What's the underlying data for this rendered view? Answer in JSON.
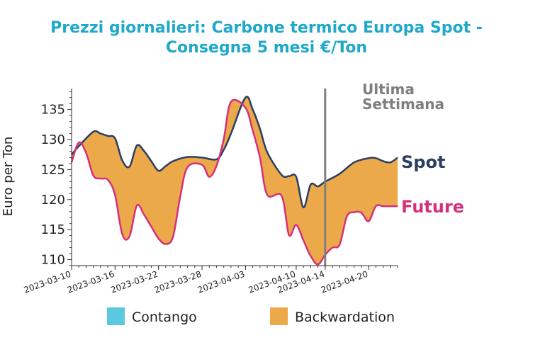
{
  "chart_data": {
    "type": "area",
    "title_line1": "Prezzi giornalieri: Carbone termico Europa Spot -",
    "title_line2": "Consegna 5 mesi €/Ton",
    "ylabel": "Euro per Ton",
    "ylim": [
      109,
      138.5
    ],
    "yticks": [
      110,
      115,
      120,
      125,
      130,
      135
    ],
    "x_range": [
      "2023-03-10",
      "2023-04-24"
    ],
    "xticks": [
      "2023-03-10",
      "2023-03-16",
      "2023-03-22",
      "2023-03-28",
      "2023-04-03",
      "2023-04-10",
      "2023-04-14",
      "2023-04-20"
    ],
    "colors": {
      "title": "#1fa8c9",
      "spot": "#2b3e63",
      "future": "#d62f7b",
      "backwardation": "#eba94a",
      "contango": "#5bc8df",
      "last_week_line": "#7f7f7f",
      "axis": "#333333"
    },
    "series": [
      {
        "name": "Spot",
        "x": [
          "2023-03-10",
          "2023-03-11",
          "2023-03-13",
          "2023-03-14",
          "2023-03-15",
          "2023-03-16",
          "2023-03-17",
          "2023-03-18",
          "2023-03-19",
          "2023-03-20",
          "2023-03-21",
          "2023-03-22",
          "2023-03-23",
          "2023-03-24",
          "2023-03-26",
          "2023-03-28",
          "2023-03-30",
          "2023-03-31",
          "2023-04-01",
          "2023-04-03",
          "2023-04-04",
          "2023-04-05",
          "2023-04-06",
          "2023-04-08",
          "2023-04-09",
          "2023-04-10",
          "2023-04-11",
          "2023-04-12",
          "2023-04-13",
          "2023-04-14",
          "2023-04-16",
          "2023-04-18",
          "2023-04-20",
          "2023-04-21",
          "2023-04-22",
          "2023-04-23",
          "2023-04-24"
        ],
        "values": [
          127.5,
          128.9,
          131.3,
          131.0,
          130.6,
          130.2,
          126.5,
          125.5,
          129.0,
          128.1,
          126.4,
          124.8,
          125.6,
          126.4,
          127.1,
          127.0,
          126.7,
          128.3,
          131.0,
          137.0,
          135.0,
          131.8,
          127.9,
          124.1,
          123.9,
          123.8,
          118.7,
          122.5,
          122.2,
          123.0,
          124.3,
          126.2,
          126.9,
          126.9,
          126.4,
          126.2,
          127.0
        ]
      },
      {
        "name": "Future",
        "x": [
          "2023-03-10",
          "2023-03-11",
          "2023-03-12",
          "2023-03-13",
          "2023-03-14",
          "2023-03-15",
          "2023-03-16",
          "2023-03-17",
          "2023-03-18",
          "2023-03-19",
          "2023-03-20",
          "2023-03-21",
          "2023-03-22",
          "2023-03-23",
          "2023-03-24",
          "2023-03-25",
          "2023-03-26",
          "2023-03-28",
          "2023-03-29",
          "2023-03-30",
          "2023-03-31",
          "2023-04-01",
          "2023-04-03",
          "2023-04-04",
          "2023-04-05",
          "2023-04-06",
          "2023-04-08",
          "2023-04-09",
          "2023-04-10",
          "2023-04-11",
          "2023-04-12",
          "2023-04-13",
          "2023-04-14",
          "2023-04-15",
          "2023-04-16",
          "2023-04-17",
          "2023-04-18",
          "2023-04-19",
          "2023-04-20",
          "2023-04-21",
          "2023-04-22",
          "2023-04-23",
          "2023-04-24"
        ],
        "values": [
          126.2,
          129.5,
          127.8,
          124.0,
          123.5,
          123.3,
          120.8,
          114.2,
          113.9,
          119.0,
          117.5,
          115.5,
          113.5,
          112.6,
          113.8,
          120.5,
          125.4,
          125.8,
          123.8,
          125.6,
          130.1,
          136.3,
          135.3,
          131.5,
          127.0,
          120.8,
          120.6,
          114.1,
          115.8,
          113.2,
          110.6,
          109.2,
          110.8,
          112.0,
          112.5,
          117.2,
          117.9,
          117.8,
          116.4,
          118.9,
          118.9,
          118.9,
          118.9
        ]
      }
    ],
    "series_labels": {
      "spot": "Spot",
      "future": "Future"
    },
    "annotation": {
      "date": "2023-04-14",
      "line1": "Ultima",
      "line2": "Settimana"
    },
    "legend": {
      "position": "bottom",
      "items": [
        "Contango",
        "Backwardation"
      ]
    }
  }
}
